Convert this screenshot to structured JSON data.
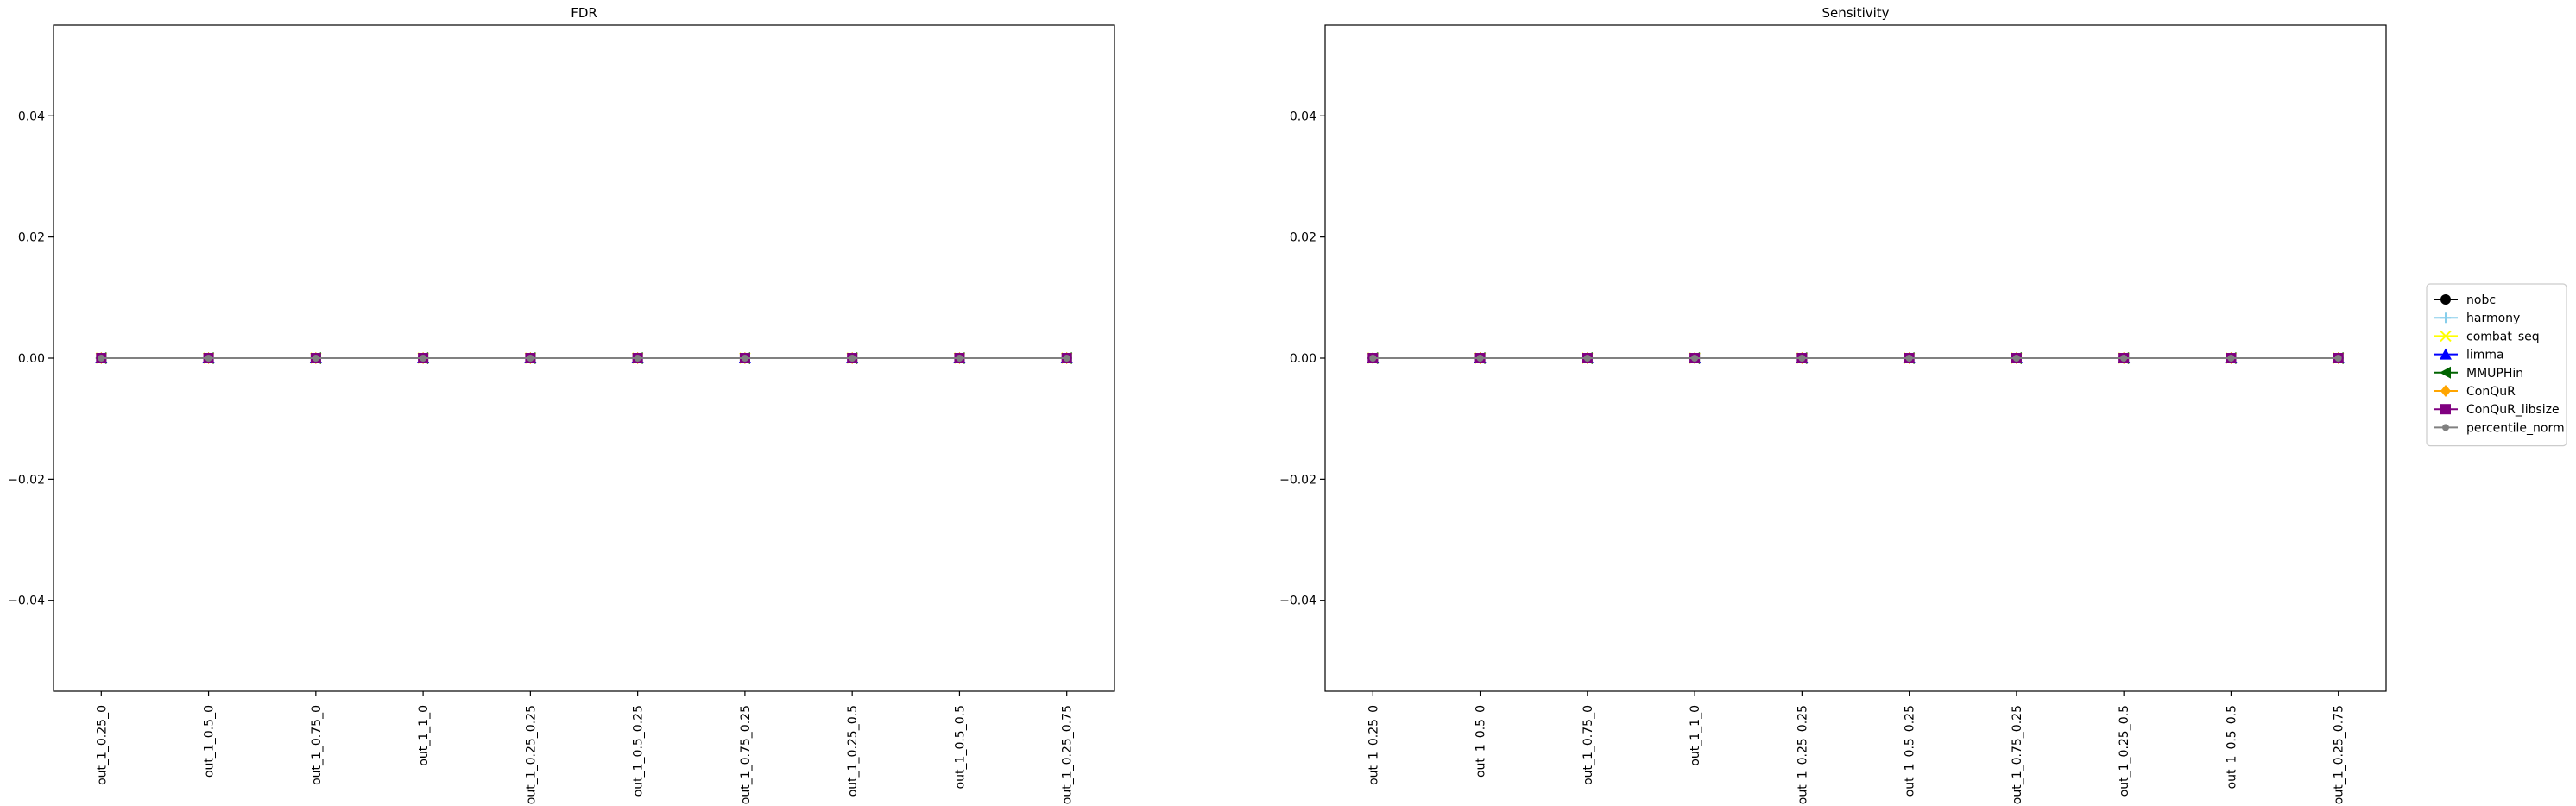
{
  "chart_data": [
    {
      "type": "line",
      "title": "FDR",
      "xlabel": "",
      "ylabel": "",
      "categories": [
        "out_1_0.25_0",
        "out_1_0.5_0",
        "out_1_0.75_0",
        "out_1_1_0",
        "out_1_0.25_0.25",
        "out_1_0.5_0.25",
        "out_1_0.75_0.25",
        "out_1_0.25_0.5",
        "out_1_0.5_0.5",
        "out_1_0.25_0.75"
      ],
      "ylim": [
        -0.055,
        0.055
      ],
      "yticks": [
        -0.04,
        -0.02,
        0.0,
        0.02,
        0.04
      ],
      "ytick_labels": [
        "−0.04",
        "−0.02",
        "0.00",
        "0.02",
        "0.04"
      ],
      "grid": false,
      "series": [
        {
          "name": "nobc",
          "color": "#000000",
          "marker": "circle",
          "values": [
            0,
            0,
            0,
            0,
            0,
            0,
            0,
            0,
            0,
            0
          ]
        },
        {
          "name": "harmony",
          "color": "#87ceeb",
          "marker": "plus",
          "values": [
            0,
            0,
            0,
            0,
            0,
            0,
            0,
            0,
            0,
            0
          ]
        },
        {
          "name": "combat_seq",
          "color": "#ffff00",
          "marker": "x",
          "values": [
            0,
            0,
            0,
            0,
            0,
            0,
            0,
            0,
            0,
            0
          ]
        },
        {
          "name": "limma",
          "color": "#0000ff",
          "marker": "triangle-up",
          "values": [
            0,
            0,
            0,
            0,
            0,
            0,
            0,
            0,
            0,
            0
          ]
        },
        {
          "name": "MMUPHin",
          "color": "#006400",
          "marker": "triangle-left",
          "values": [
            0,
            0,
            0,
            0,
            0,
            0,
            0,
            0,
            0,
            0
          ]
        },
        {
          "name": "ConQuR",
          "color": "#ffa500",
          "marker": "diamond",
          "values": [
            0,
            0,
            0,
            0,
            0,
            0,
            0,
            0,
            0,
            0
          ]
        },
        {
          "name": "ConQuR_libsize",
          "color": "#800080",
          "marker": "square",
          "values": [
            0,
            0,
            0,
            0,
            0,
            0,
            0,
            0,
            0,
            0
          ]
        },
        {
          "name": "percentile_norm",
          "color": "#808080",
          "marker": "point",
          "values": [
            0,
            0,
            0,
            0,
            0,
            0,
            0,
            0,
            0,
            0
          ]
        }
      ]
    },
    {
      "type": "line",
      "title": "Sensitivity",
      "xlabel": "",
      "ylabel": "",
      "categories": [
        "out_1_0.25_0",
        "out_1_0.5_0",
        "out_1_0.75_0",
        "out_1_1_0",
        "out_1_0.25_0.25",
        "out_1_0.5_0.25",
        "out_1_0.75_0.25",
        "out_1_0.25_0.5",
        "out_1_0.5_0.5",
        "out_1_0.25_0.75"
      ],
      "ylim": [
        -0.055,
        0.055
      ],
      "yticks": [
        -0.04,
        -0.02,
        0.0,
        0.02,
        0.04
      ],
      "ytick_labels": [
        "−0.04",
        "−0.02",
        "0.00",
        "0.02",
        "0.04"
      ],
      "grid": false,
      "series": [
        {
          "name": "nobc",
          "color": "#000000",
          "marker": "circle",
          "values": [
            0,
            0,
            0,
            0,
            0,
            0,
            0,
            0,
            0,
            0
          ]
        },
        {
          "name": "harmony",
          "color": "#87ceeb",
          "marker": "plus",
          "values": [
            0,
            0,
            0,
            0,
            0,
            0,
            0,
            0,
            0,
            0
          ]
        },
        {
          "name": "combat_seq",
          "color": "#ffff00",
          "marker": "x",
          "values": [
            0,
            0,
            0,
            0,
            0,
            0,
            0,
            0,
            0,
            0
          ]
        },
        {
          "name": "limma",
          "color": "#0000ff",
          "marker": "triangle-up",
          "values": [
            0,
            0,
            0,
            0,
            0,
            0,
            0,
            0,
            0,
            0
          ]
        },
        {
          "name": "MMUPHin",
          "color": "#006400",
          "marker": "triangle-left",
          "values": [
            0,
            0,
            0,
            0,
            0,
            0,
            0,
            0,
            0,
            0
          ]
        },
        {
          "name": "ConQuR",
          "color": "#ffa500",
          "marker": "diamond",
          "values": [
            0,
            0,
            0,
            0,
            0,
            0,
            0,
            0,
            0,
            0
          ]
        },
        {
          "name": "ConQuR_libsize",
          "color": "#800080",
          "marker": "square",
          "values": [
            0,
            0,
            0,
            0,
            0,
            0,
            0,
            0,
            0,
            0
          ]
        },
        {
          "name": "percentile_norm",
          "color": "#808080",
          "marker": "point",
          "values": [
            0,
            0,
            0,
            0,
            0,
            0,
            0,
            0,
            0,
            0
          ]
        }
      ]
    }
  ],
  "legend": {
    "placement": "right",
    "entries": [
      "nobc",
      "harmony",
      "combat_seq",
      "limma",
      "MMUPHin",
      "ConQuR",
      "ConQuR_libsize",
      "percentile_norm"
    ]
  }
}
